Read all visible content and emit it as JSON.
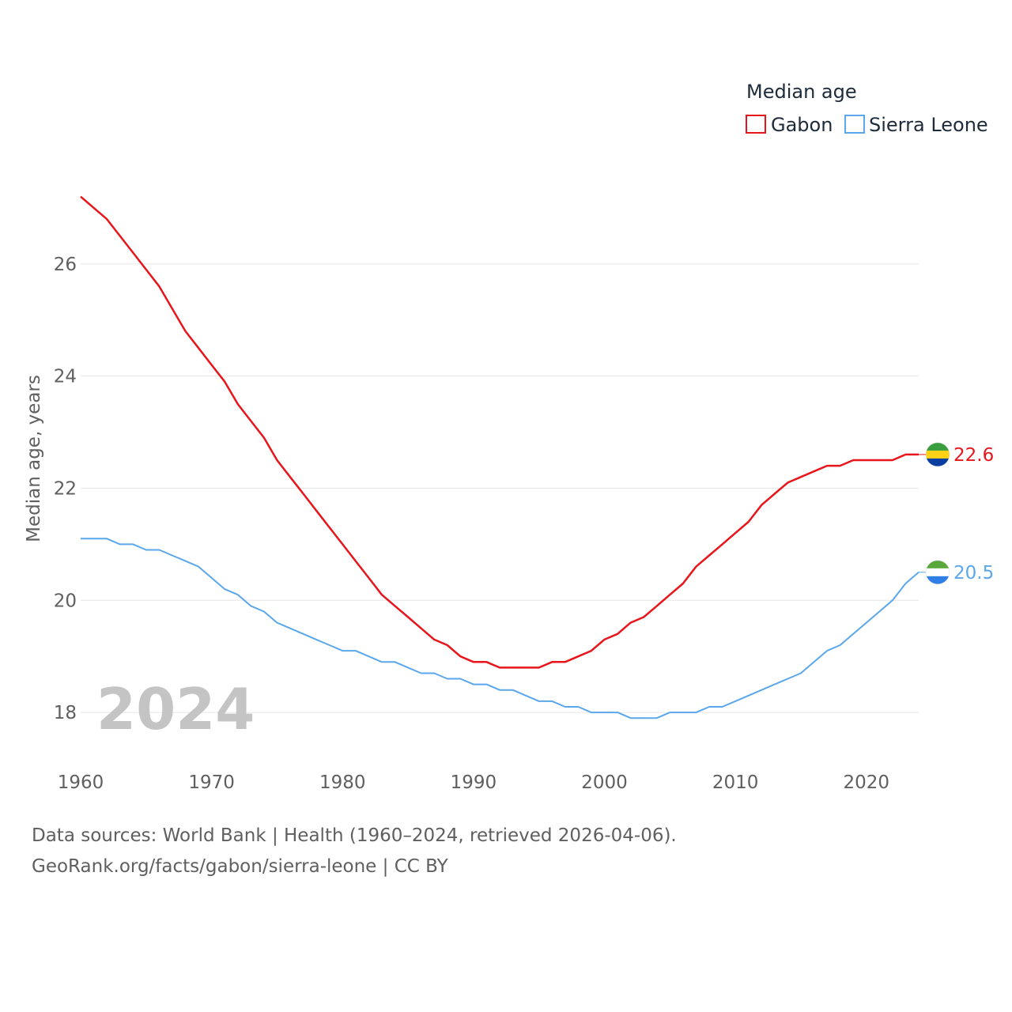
{
  "chart_data": {
    "type": "line",
    "legend": {
      "title": "Median age",
      "position": "top-right"
    },
    "ylabel": "Median age, years",
    "xlabel": "",
    "xlim": [
      1960,
      2024
    ],
    "ylim": [
      17.0,
      28.0
    ],
    "yticks": [
      18,
      20,
      22,
      24,
      26
    ],
    "xticks": [
      1960,
      1970,
      1980,
      1990,
      2000,
      2010,
      2020
    ],
    "grid": true,
    "year_watermark": "2024",
    "x": [
      1960,
      1961,
      1962,
      1963,
      1964,
      1965,
      1966,
      1967,
      1968,
      1969,
      1970,
      1971,
      1972,
      1973,
      1974,
      1975,
      1976,
      1977,
      1978,
      1979,
      1980,
      1981,
      1982,
      1983,
      1984,
      1985,
      1986,
      1987,
      1988,
      1989,
      1990,
      1991,
      1992,
      1993,
      1994,
      1995,
      1996,
      1997,
      1998,
      1999,
      2000,
      2001,
      2002,
      2003,
      2004,
      2005,
      2006,
      2007,
      2008,
      2009,
      2010,
      2011,
      2012,
      2013,
      2014,
      2015,
      2016,
      2017,
      2018,
      2019,
      2020,
      2021,
      2022,
      2023,
      2024
    ],
    "series": [
      {
        "name": "Gabon",
        "color": "#e8151b",
        "end_label": "22.6",
        "flag": "gabon-flag",
        "values": [
          27.2,
          27.0,
          26.8,
          26.5,
          26.2,
          25.9,
          25.6,
          25.2,
          24.8,
          24.5,
          24.2,
          23.9,
          23.5,
          23.2,
          22.9,
          22.5,
          22.2,
          21.9,
          21.6,
          21.3,
          21.0,
          20.7,
          20.4,
          20.1,
          19.9,
          19.7,
          19.5,
          19.3,
          19.2,
          19.0,
          18.9,
          18.9,
          18.8,
          18.8,
          18.8,
          18.8,
          18.9,
          18.9,
          19.0,
          19.1,
          19.3,
          19.4,
          19.6,
          19.7,
          19.9,
          20.1,
          20.3,
          20.6,
          20.8,
          21.0,
          21.2,
          21.4,
          21.7,
          21.9,
          22.1,
          22.2,
          22.3,
          22.4,
          22.4,
          22.5,
          22.5,
          22.5,
          22.5,
          22.6,
          22.6
        ]
      },
      {
        "name": "Sierra Leone",
        "color": "#5aa7eb",
        "end_label": "20.5",
        "flag": "sierra-leone-flag",
        "values": [
          21.1,
          21.1,
          21.1,
          21.0,
          21.0,
          20.9,
          20.9,
          20.8,
          20.7,
          20.6,
          20.4,
          20.2,
          20.1,
          19.9,
          19.8,
          19.6,
          19.5,
          19.4,
          19.3,
          19.2,
          19.1,
          19.1,
          19.0,
          18.9,
          18.9,
          18.8,
          18.7,
          18.7,
          18.6,
          18.6,
          18.5,
          18.5,
          18.4,
          18.4,
          18.3,
          18.2,
          18.2,
          18.1,
          18.1,
          18.0,
          18.0,
          18.0,
          17.9,
          17.9,
          17.9,
          18.0,
          18.0,
          18.0,
          18.1,
          18.1,
          18.2,
          18.3,
          18.4,
          18.5,
          18.6,
          18.7,
          18.9,
          19.1,
          19.2,
          19.4,
          19.6,
          19.8,
          20.0,
          20.3,
          20.5
        ]
      }
    ]
  },
  "footer": {
    "line1": "Data sources: World Bank | Health (1960–2024, retrieved 2026-04-06).",
    "line2": "GeoRank.org/facts/gabon/sierra-leone | CC BY"
  }
}
